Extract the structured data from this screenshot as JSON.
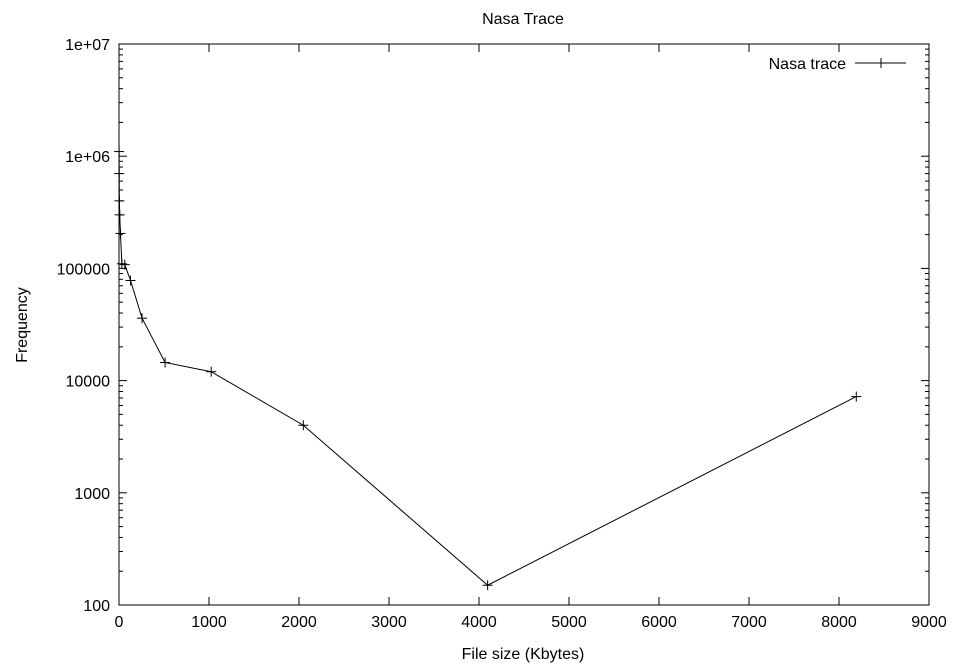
{
  "chart_data": {
    "type": "line",
    "title": "Nasa Trace",
    "xlabel": "File size (Kbytes)",
    "ylabel": "Frequency",
    "xlim": [
      0,
      9000
    ],
    "ylim": [
      100,
      10000000
    ],
    "yscale": "log",
    "grid": false,
    "legend_position": "top-right",
    "xticks": [
      0,
      1000,
      2000,
      3000,
      4000,
      5000,
      6000,
      7000,
      8000,
      9000
    ],
    "xtick_labels": [
      "0",
      "1000",
      "2000",
      "3000",
      "4000",
      "5000",
      "6000",
      "7000",
      "8000",
      "9000"
    ],
    "yticks": [
      100,
      1000,
      10000,
      100000,
      1000000,
      10000000
    ],
    "ytick_labels": [
      "100",
      "1000",
      "10000",
      "100000",
      "1e+06",
      "1e+07"
    ],
    "series": [
      {
        "name": "Nasa trace",
        "color": "#000000",
        "marker": "plus",
        "x": [
          1,
          2,
          4,
          8,
          16,
          32,
          64,
          128,
          256,
          512,
          1024,
          2048,
          4096,
          8192
        ],
        "y": [
          1100000,
          700000,
          400000,
          300000,
          205000,
          110000,
          108000,
          78000,
          36000,
          14500,
          12000,
          4000,
          150,
          7200
        ]
      }
    ]
  }
}
